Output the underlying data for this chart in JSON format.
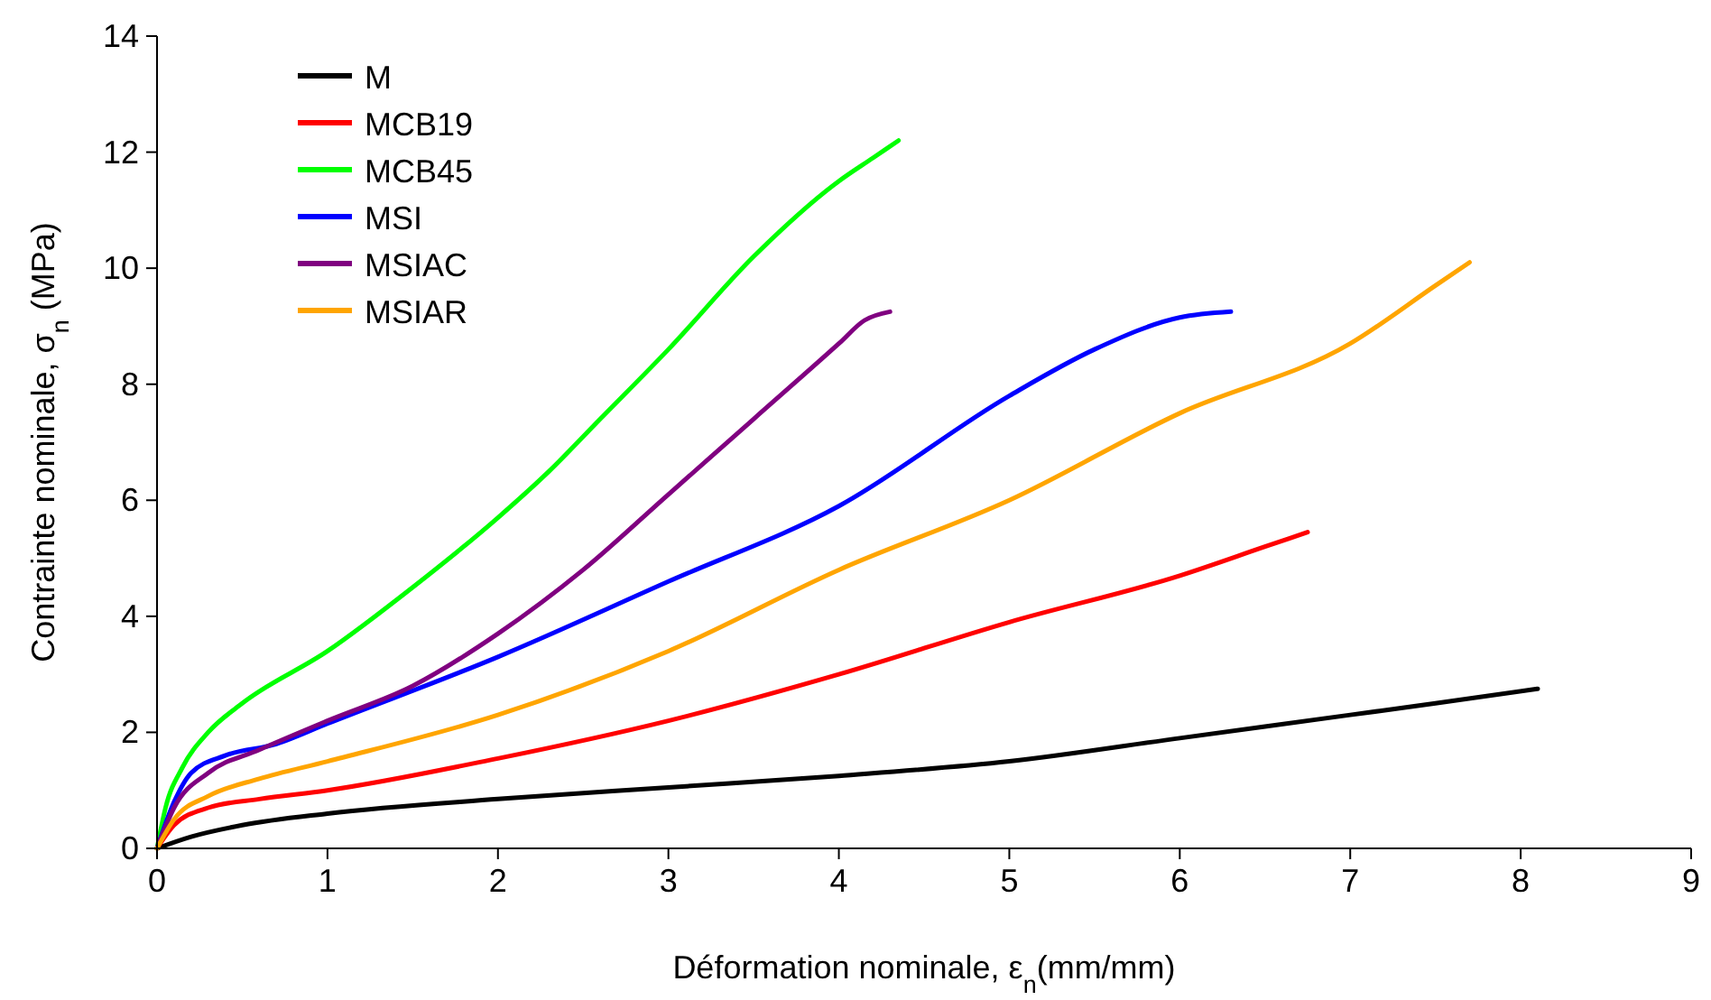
{
  "chart_data": {
    "type": "line",
    "xlabel": "Déformation nominale, ε$_{n}$(mm/mm)",
    "ylabel": "Contrainte nominale, σ$_{n}$ (MPa)",
    "xlim": [
      0,
      9
    ],
    "ylim": [
      0,
      14
    ],
    "xticks": [
      0,
      1,
      2,
      3,
      4,
      5,
      6,
      7,
      8,
      9
    ],
    "yticks": [
      0,
      2,
      4,
      6,
      8,
      10,
      12,
      14
    ],
    "grid": false,
    "legend": "top left",
    "marker": "none",
    "line_style": "solid",
    "series": [
      {
        "name": "M",
        "color": "#000000",
        "x": [
          0,
          0.2,
          0.5,
          1,
          2,
          3,
          4,
          5,
          6,
          7,
          7.5,
          8.1
        ],
        "values": [
          0,
          0.2,
          0.4,
          0.6,
          0.85,
          1.05,
          1.25,
          1.5,
          1.9,
          2.3,
          2.5,
          2.75
        ]
      },
      {
        "name": "MCB19",
        "color": "#ff0000",
        "x": [
          0,
          0.1,
          0.3,
          0.6,
          1,
          2,
          3,
          4,
          5,
          6,
          6.5,
          6.75
        ],
        "values": [
          0,
          0.4,
          0.7,
          0.85,
          1.0,
          1.55,
          2.2,
          3.0,
          3.9,
          4.7,
          5.2,
          5.45
        ]
      },
      {
        "name": "MCB45",
        "color": "#00ff00",
        "x": [
          0,
          0.05,
          0.15,
          0.3,
          0.5,
          1,
          1.5,
          2,
          2.3,
          2.6,
          3,
          3.5,
          4,
          4.2,
          4.35
        ],
        "values": [
          0,
          0.7,
          1.4,
          2.0,
          2.5,
          3.4,
          4.5,
          5.7,
          6.5,
          7.4,
          8.6,
          10.2,
          11.5,
          11.9,
          12.2
        ]
      },
      {
        "name": "MSI",
        "color": "#0000ff",
        "x": [
          0,
          0.1,
          0.2,
          0.4,
          0.7,
          1,
          2,
          3,
          4,
          5,
          5.5,
          6,
          6.3
        ],
        "values": [
          0,
          0.8,
          1.3,
          1.6,
          1.8,
          2.15,
          3.3,
          4.6,
          5.9,
          7.8,
          8.6,
          9.15,
          9.25
        ]
      },
      {
        "name": "MSIAC",
        "color": "#800080",
        "x": [
          0,
          0.1,
          0.3,
          0.6,
          1,
          1.5,
          2,
          2.5,
          3,
          3.5,
          4,
          4.15,
          4.3
        ],
        "values": [
          0,
          0.7,
          1.3,
          1.7,
          2.2,
          2.8,
          3.7,
          4.8,
          6.1,
          7.4,
          8.7,
          9.1,
          9.25
        ]
      },
      {
        "name": "MSIAR",
        "color": "#ffa500",
        "x": [
          0,
          0.1,
          0.3,
          0.6,
          1,
          2,
          3,
          4,
          5,
          6,
          7,
          7.5,
          7.7
        ],
        "values": [
          0,
          0.5,
          0.9,
          1.2,
          1.5,
          2.3,
          3.4,
          4.8,
          6.0,
          7.5,
          8.7,
          9.7,
          10.1
        ]
      }
    ]
  }
}
